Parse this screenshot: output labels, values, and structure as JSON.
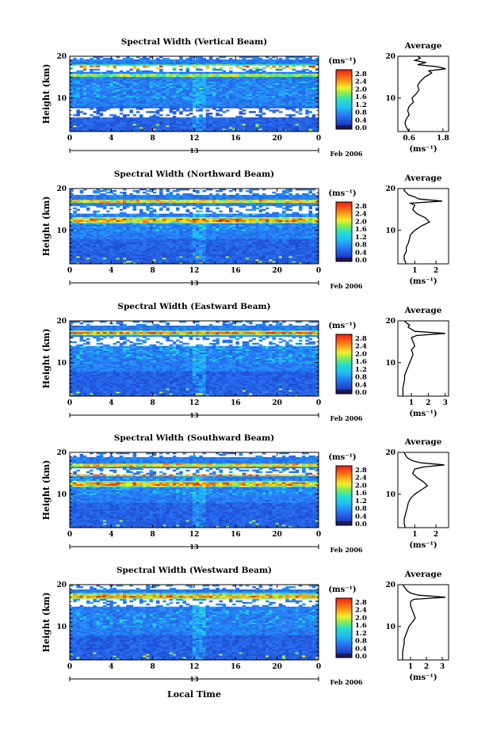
{
  "chart_data": [
    {
      "type": "heatmap",
      "title": "Spectral Width (Vertical Beam)",
      "ylabel": "Height (km)",
      "x_ticks": [
        "0",
        "4",
        "8",
        "12",
        "16",
        "20",
        "0"
      ],
      "y_ticks": [
        "20",
        "10"
      ],
      "date_label": "13",
      "date_suffix": "Feb 2006",
      "xlim": [
        0,
        24
      ],
      "ylim": [
        2,
        20
      ],
      "colorbar": {
        "unit": "(ms⁻¹)",
        "ticks": [
          "2.8",
          "2.4",
          "2.0",
          "1.6",
          "1.2",
          "0.8",
          "0.4",
          "0.0"
        ]
      },
      "profile": {
        "title": "Average",
        "xlabel": "(ms⁻¹)",
        "x_ticks": [
          "0.6",
          "1.8"
        ],
        "xlim": [
          0.2,
          2.0
        ],
        "y_ticks": [
          "20",
          "10"
        ],
        "height": [
          2,
          3,
          4,
          5,
          6,
          7,
          8,
          9,
          10,
          11,
          12,
          13,
          14,
          15,
          16,
          16.5,
          17,
          17.5,
          18,
          18.5,
          19,
          19.5,
          20
        ],
        "width": [
          0.6,
          0.5,
          0.45,
          0.5,
          0.6,
          0.55,
          0.6,
          0.75,
          0.7,
          0.85,
          0.95,
          0.9,
          1.0,
          1.15,
          1.4,
          1.3,
          1.9,
          1.6,
          0.9,
          1.2,
          0.8,
          1.0,
          0.9
        ]
      },
      "hot_layers": [
        {
          "h": 17.5,
          "w": 0.6
        },
        {
          "h": 15.5,
          "w": 0.3
        }
      ],
      "gaps": [
        {
          "h": 17,
          "d": 1.8
        },
        {
          "h": 6.5,
          "d": 2.5
        }
      ],
      "seed": 11
    },
    {
      "type": "heatmap",
      "title": "Spectral Width (Northward Beam)",
      "ylabel": "Height (km)",
      "x_ticks": [
        "0",
        "4",
        "8",
        "12",
        "16",
        "20",
        "0"
      ],
      "y_ticks": [
        "20",
        "10"
      ],
      "date_label": "13",
      "date_suffix": "Feb 2006",
      "xlim": [
        0,
        24
      ],
      "ylim": [
        2,
        20
      ],
      "colorbar": {
        "unit": "(ms⁻¹)",
        "ticks": [
          "2.8",
          "2.4",
          "2.0",
          "1.6",
          "1.2",
          "0.8",
          "0.4",
          "0.0"
        ]
      },
      "profile": {
        "title": "Average",
        "xlabel": "(ms⁻¹)",
        "x_ticks": [
          "1",
          "2"
        ],
        "xlim": [
          0.2,
          2.6
        ],
        "y_ticks": [
          "20",
          "10"
        ],
        "height": [
          2,
          3,
          4,
          5,
          6,
          7,
          8,
          9,
          10,
          11,
          12,
          13,
          14,
          15,
          16,
          16.5,
          17,
          17.5,
          18,
          18.5,
          19,
          19.5,
          20
        ],
        "width": [
          0.6,
          0.5,
          0.5,
          0.6,
          0.6,
          0.7,
          0.75,
          0.8,
          1.0,
          1.3,
          1.7,
          1.5,
          1.1,
          0.9,
          1.0,
          0.8,
          2.3,
          1.2,
          1.0,
          0.7,
          0.6,
          0.5,
          0.5
        ]
      },
      "hot_layers": [
        {
          "h": 17.0,
          "w": 0.5
        },
        {
          "h": 12.5,
          "w": 0.9
        }
      ],
      "gaps": [
        {
          "h": 15,
          "d": 2.0
        },
        {
          "h": 19,
          "d": 0.8
        }
      ],
      "seed": 23
    },
    {
      "type": "heatmap",
      "title": "Spectral Width (Eastward Beam)",
      "ylabel": "Height (km)",
      "x_ticks": [
        "0",
        "4",
        "8",
        "12",
        "16",
        "20",
        "0"
      ],
      "y_ticks": [
        "20",
        "10"
      ],
      "date_label": "13",
      "date_suffix": "Feb 2006",
      "xlim": [
        0,
        24
      ],
      "ylim": [
        2,
        20
      ],
      "colorbar": {
        "unit": "(ms⁻¹)",
        "ticks": [
          "2.8",
          "2.4",
          "2.0",
          "1.6",
          "1.2",
          "0.8",
          "0.4",
          "0.0"
        ]
      },
      "profile": {
        "title": "Average",
        "xlabel": "(ms⁻¹)",
        "x_ticks": [
          "1",
          "2",
          "3"
        ],
        "xlim": [
          0.2,
          3.2
        ],
        "y_ticks": [
          "20",
          "10"
        ],
        "height": [
          2,
          3,
          4,
          5,
          6,
          7,
          8,
          9,
          10,
          11,
          12,
          13,
          14,
          15,
          16,
          16.5,
          17,
          17.5,
          18,
          18.5,
          19,
          19.5,
          20
        ],
        "width": [
          0.5,
          0.5,
          0.5,
          0.55,
          0.6,
          0.6,
          0.7,
          0.8,
          0.9,
          1.0,
          1.1,
          1.0,
          1.2,
          1.1,
          1.0,
          1.3,
          3.0,
          1.2,
          1.0,
          0.8,
          0.9,
          0.7,
          0.6
        ]
      },
      "hot_layers": [
        {
          "h": 17.2,
          "w": 0.6
        }
      ],
      "gaps": [
        {
          "h": 15,
          "d": 2.2
        },
        {
          "h": 19.3,
          "d": 0.9
        }
      ],
      "seed": 37
    },
    {
      "type": "heatmap",
      "title": "Spectral Width (Southward Beam)",
      "ylabel": "Height (km)",
      "x_ticks": [
        "0",
        "4",
        "8",
        "12",
        "16",
        "20",
        "0"
      ],
      "y_ticks": [
        "20",
        "10"
      ],
      "date_label": "13",
      "date_suffix": "Feb 2006",
      "xlim": [
        0,
        24
      ],
      "ylim": [
        2,
        20
      ],
      "colorbar": {
        "unit": "(ms⁻¹)",
        "ticks": [
          "2.8",
          "2.4",
          "2.0",
          "1.6",
          "1.2",
          "0.8",
          "0.4",
          "0.0"
        ]
      },
      "profile": {
        "title": "Average",
        "xlabel": "(ms⁻¹)",
        "x_ticks": [
          "1",
          "2"
        ],
        "xlim": [
          0.2,
          2.6
        ],
        "y_ticks": [
          "20",
          "10"
        ],
        "height": [
          2,
          3,
          4,
          5,
          6,
          7,
          8,
          9,
          10,
          11,
          12,
          13,
          14,
          15,
          16,
          16.5,
          17,
          17.5,
          18,
          18.5,
          19,
          19.5,
          20
        ],
        "width": [
          0.55,
          0.5,
          0.5,
          0.55,
          0.6,
          0.65,
          0.7,
          0.8,
          1.0,
          1.3,
          1.6,
          1.4,
          1.1,
          0.9,
          1.0,
          1.4,
          2.4,
          1.3,
          0.9,
          0.7,
          0.6,
          0.55,
          0.5
        ]
      },
      "hot_layers": [
        {
          "h": 17.0,
          "w": 0.5
        },
        {
          "h": 12.5,
          "w": 0.8
        },
        {
          "h": 14.5,
          "w": 0.3
        }
      ],
      "gaps": [
        {
          "h": 15.5,
          "d": 1.6
        },
        {
          "h": 19.2,
          "d": 0.9
        }
      ],
      "seed": 51
    },
    {
      "type": "heatmap",
      "title": "Spectral Width (Westward Beam)",
      "ylabel": "Height (km)",
      "x_ticks": [
        "0",
        "4",
        "8",
        "12",
        "16",
        "20",
        "0"
      ],
      "y_ticks": [
        "20",
        "10"
      ],
      "date_label": "13",
      "date_suffix": "Feb 2006",
      "xlabel": "Local Time",
      "xlim": [
        0,
        24
      ],
      "ylim": [
        2,
        20
      ],
      "colorbar": {
        "unit": "(ms⁻¹)",
        "ticks": [
          "2.8",
          "2.4",
          "2.0",
          "1.6",
          "1.2",
          "0.8",
          "0.4",
          "0.0"
        ]
      },
      "profile": {
        "title": "Average",
        "xlabel": "(ms⁻¹)",
        "x_ticks": [
          "1",
          "2",
          "3"
        ],
        "xlim": [
          0.2,
          3.4
        ],
        "y_ticks": [
          "20",
          "10"
        ],
        "height": [
          2,
          3,
          4,
          5,
          6,
          7,
          8,
          9,
          10,
          11,
          12,
          13,
          14,
          15,
          16,
          16.5,
          17,
          17.5,
          18,
          18.5,
          19,
          19.5,
          20
        ],
        "width": [
          0.5,
          0.5,
          0.5,
          0.55,
          0.6,
          0.6,
          0.7,
          0.8,
          0.9,
          1.1,
          1.3,
          1.2,
          1.1,
          1.0,
          1.0,
          1.2,
          3.2,
          1.5,
          1.0,
          0.8,
          0.7,
          0.6,
          0.5
        ]
      },
      "hot_layers": [
        {
          "h": 17.3,
          "w": 0.8
        }
      ],
      "gaps": [
        {
          "h": 15.8,
          "d": 2.0
        },
        {
          "h": 19.4,
          "d": 0.8
        }
      ],
      "seed": 67
    }
  ]
}
